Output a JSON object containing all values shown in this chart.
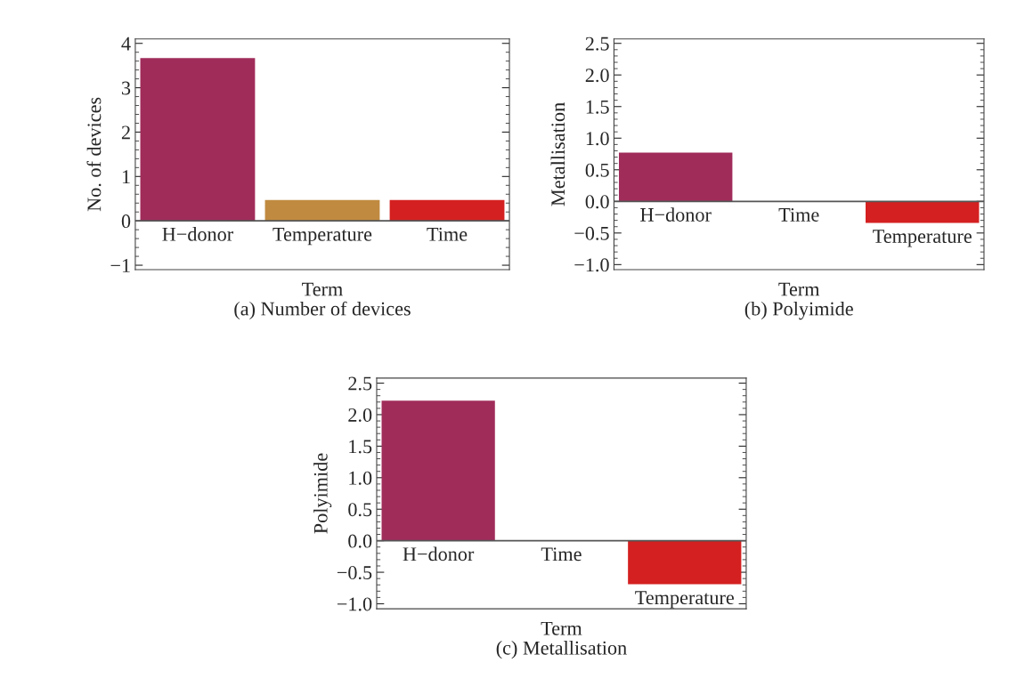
{
  "chart_data": [
    {
      "type": "bar",
      "title": "(a) Number of devices",
      "xlabel": "Term",
      "ylabel": "No. of devices",
      "categories": [
        "H−donor",
        "Temperature",
        "Time"
      ],
      "values": [
        3.67,
        0.47,
        0.47
      ],
      "colors": [
        "#a02c5a",
        "#c08a40",
        "#d42020"
      ],
      "ylim": [
        -1.1,
        4.1
      ],
      "yticks": [
        {
          "value": -1,
          "label": "−1"
        },
        0,
        1,
        2,
        3,
        4
      ],
      "grid": false,
      "legend": false
    },
    {
      "type": "bar",
      "title": "(b) Polyimide",
      "xlabel": "Term",
      "ylabel": "Metallisation",
      "categories": [
        "H−donor",
        "Time",
        "Temperature"
      ],
      "values": [
        0.77,
        0,
        -0.34
      ],
      "colors": [
        "#a02c5a",
        "#c08a40",
        "#d42020"
      ],
      "ylim": [
        -1.08,
        2.57
      ],
      "yticks": [
        {
          "value": -1.0,
          "label": "−1.0"
        },
        {
          "value": -0.5,
          "label": "−0.5"
        },
        {
          "value": 0,
          "label": "0.0"
        },
        0.5,
        {
          "value": 1,
          "label": "1.0"
        },
        1.5,
        {
          "value": 2,
          "label": "2.0"
        },
        2.5
      ],
      "grid": false,
      "legend": false
    },
    {
      "type": "bar",
      "title": "(c) Metallisation",
      "xlabel": "Term",
      "ylabel": "Polyimide",
      "categories": [
        "H−donor",
        "Time",
        "Temperature"
      ],
      "values": [
        2.22,
        0,
        -0.69
      ],
      "colors": [
        "#a02c5a",
        "#c08a40",
        "#d42020"
      ],
      "ylim": [
        -1.08,
        2.58
      ],
      "yticks": [
        {
          "value": -1.0,
          "label": "−1.0"
        },
        {
          "value": -0.5,
          "label": "−0.5"
        },
        {
          "value": 0,
          "label": "0.0"
        },
        0.5,
        {
          "value": 1,
          "label": "1.0"
        },
        1.5,
        {
          "value": 2,
          "label": "2.0"
        },
        2.5
      ],
      "grid": false,
      "legend": false
    }
  ]
}
